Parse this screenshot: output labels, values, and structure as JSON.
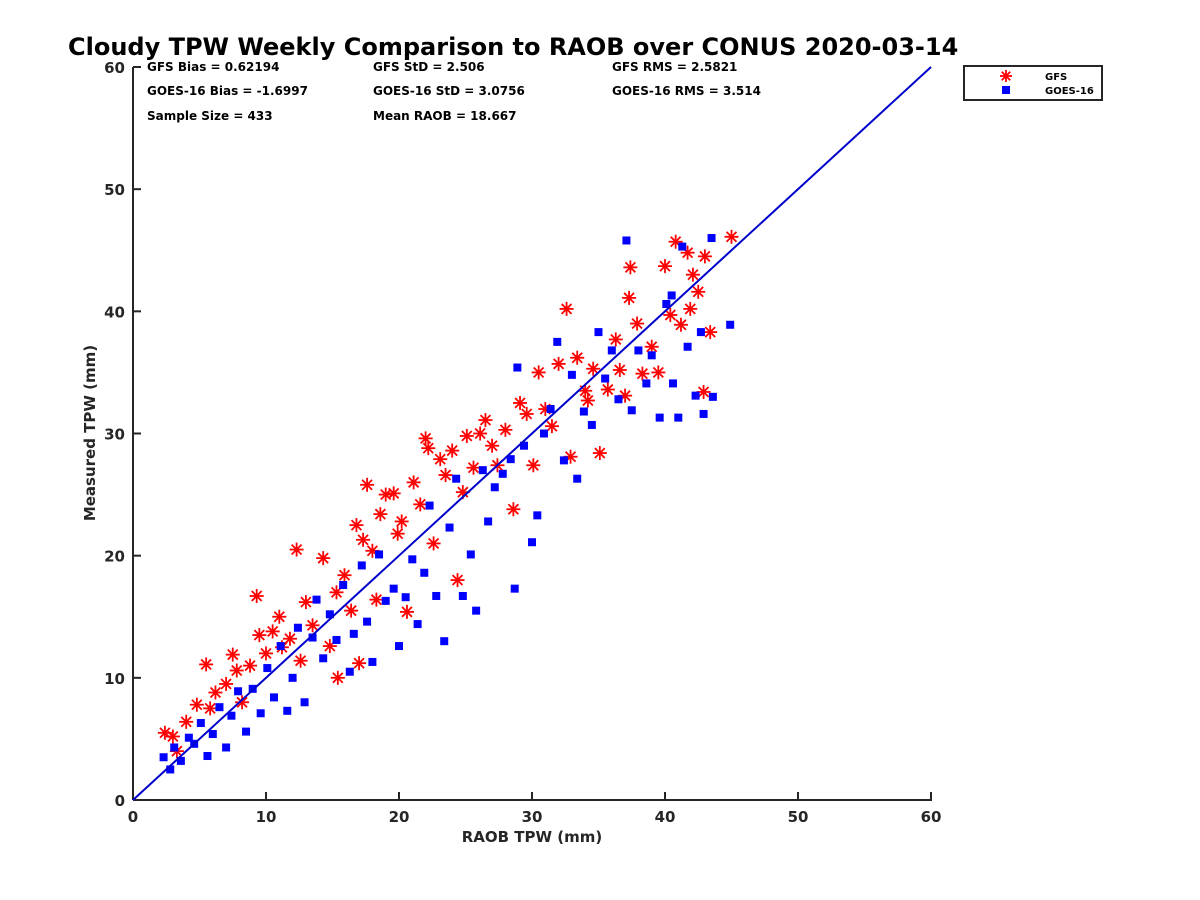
{
  "chart_data": {
    "type": "scatter",
    "title": "Cloudy TPW Weekly Comparison to RAOB over CONUS 2020-03-14",
    "xlabel": "RAOB TPW (mm)",
    "ylabel": "Measured TPW (mm)",
    "xlim": [
      0,
      60
    ],
    "ylim": [
      0,
      60
    ],
    "xticks": [
      0,
      10,
      20,
      30,
      40,
      50,
      60
    ],
    "yticks": [
      0,
      10,
      20,
      30,
      40,
      50,
      60
    ],
    "grid": false,
    "legend_position": "top-right",
    "reference_line": {
      "name": "1:1 line",
      "from": [
        0,
        0
      ],
      "to": [
        60,
        60
      ],
      "color": "#0000cc"
    },
    "stats": [
      [
        "GFS Bias = 0.62194",
        "GFS StD = 2.506",
        "GFS RMS = 2.5821"
      ],
      [
        "GOES-16 Bias = -1.6997",
        "GOES-16 StD = 3.0756",
        "GOES-16 RMS = 3.514"
      ],
      [
        "Sample Size = 433",
        "Mean RAOB = 18.667"
      ]
    ],
    "series": [
      {
        "name": "GFS",
        "marker": "asterisk",
        "color": "#ff0000",
        "points": [
          [
            2.4,
            5.5
          ],
          [
            3.0,
            5.2
          ],
          [
            3.3,
            4.0
          ],
          [
            4.0,
            6.4
          ],
          [
            4.8,
            7.8
          ],
          [
            5.5,
            11.1
          ],
          [
            5.8,
            7.5
          ],
          [
            6.2,
            8.8
          ],
          [
            7.0,
            9.5
          ],
          [
            7.5,
            11.9
          ],
          [
            7.8,
            10.6
          ],
          [
            8.2,
            8.0
          ],
          [
            8.8,
            11.0
          ],
          [
            9.3,
            16.7
          ],
          [
            9.5,
            13.5
          ],
          [
            10.0,
            12.0
          ],
          [
            10.5,
            13.8
          ],
          [
            11.0,
            15.0
          ],
          [
            11.2,
            12.5
          ],
          [
            11.8,
            13.2
          ],
          [
            12.3,
            20.5
          ],
          [
            12.6,
            11.4
          ],
          [
            13.0,
            16.2
          ],
          [
            13.5,
            14.3
          ],
          [
            14.3,
            19.8
          ],
          [
            14.8,
            12.6
          ],
          [
            15.3,
            17.0
          ],
          [
            15.4,
            10.0
          ],
          [
            15.9,
            18.4
          ],
          [
            16.4,
            15.5
          ],
          [
            16.8,
            22.5
          ],
          [
            17.0,
            11.2
          ],
          [
            17.3,
            21.3
          ],
          [
            17.6,
            25.8
          ],
          [
            18.0,
            20.4
          ],
          [
            18.3,
            16.4
          ],
          [
            18.6,
            23.4
          ],
          [
            19.0,
            25.0
          ],
          [
            19.6,
            25.1
          ],
          [
            19.9,
            21.8
          ],
          [
            20.2,
            22.8
          ],
          [
            20.6,
            15.4
          ],
          [
            21.1,
            26.0
          ],
          [
            21.6,
            24.2
          ],
          [
            22.0,
            29.6
          ],
          [
            22.2,
            28.8
          ],
          [
            22.6,
            21.0
          ],
          [
            23.1,
            27.9
          ],
          [
            23.5,
            26.6
          ],
          [
            24.0,
            28.6
          ],
          [
            24.4,
            18.0
          ],
          [
            24.8,
            25.2
          ],
          [
            25.1,
            29.8
          ],
          [
            25.6,
            27.2
          ],
          [
            26.1,
            30.0
          ],
          [
            26.5,
            31.1
          ],
          [
            27.0,
            29.0
          ],
          [
            27.4,
            27.4
          ],
          [
            28.0,
            30.3
          ],
          [
            28.6,
            23.8
          ],
          [
            29.1,
            32.5
          ],
          [
            29.6,
            31.6
          ],
          [
            30.1,
            27.4
          ],
          [
            30.5,
            35.0
          ],
          [
            31.0,
            32.0
          ],
          [
            31.5,
            30.6
          ],
          [
            32.0,
            35.7
          ],
          [
            32.6,
            40.2
          ],
          [
            32.9,
            28.1
          ],
          [
            33.4,
            36.2
          ],
          [
            34.0,
            33.5
          ],
          [
            34.6,
            35.3
          ],
          [
            35.1,
            28.4
          ],
          [
            35.7,
            33.6
          ],
          [
            36.3,
            37.7
          ],
          [
            37.0,
            33.1
          ],
          [
            37.3,
            41.1
          ],
          [
            37.4,
            43.6
          ],
          [
            37.9,
            39.0
          ],
          [
            38.3,
            34.9
          ],
          [
            39.0,
            37.1
          ],
          [
            39.5,
            35.0
          ],
          [
            40.0,
            43.7
          ],
          [
            40.4,
            39.7
          ],
          [
            40.8,
            45.7
          ],
          [
            41.2,
            38.9
          ],
          [
            41.7,
            44.8
          ],
          [
            42.1,
            43.0
          ],
          [
            42.5,
            41.6
          ],
          [
            43.0,
            44.5
          ],
          [
            42.9,
            33.4
          ],
          [
            43.4,
            38.3
          ],
          [
            45.0,
            46.1
          ],
          [
            41.9,
            40.2
          ],
          [
            36.6,
            35.2
          ],
          [
            34.2,
            32.7
          ]
        ]
      },
      {
        "name": "GOES-16",
        "marker": "square",
        "color": "#0000ff",
        "points": [
          [
            2.3,
            3.5
          ],
          [
            2.8,
            2.5
          ],
          [
            3.1,
            4.3
          ],
          [
            3.6,
            3.2
          ],
          [
            4.2,
            5.1
          ],
          [
            4.6,
            4.6
          ],
          [
            5.1,
            6.3
          ],
          [
            5.6,
            3.6
          ],
          [
            6.0,
            5.4
          ],
          [
            6.5,
            7.6
          ],
          [
            7.0,
            4.3
          ],
          [
            7.4,
            6.9
          ],
          [
            7.9,
            8.9
          ],
          [
            8.5,
            5.6
          ],
          [
            9.0,
            9.1
          ],
          [
            9.6,
            7.1
          ],
          [
            10.1,
            10.8
          ],
          [
            10.6,
            8.4
          ],
          [
            11.1,
            12.6
          ],
          [
            11.6,
            7.3
          ],
          [
            12.0,
            10.0
          ],
          [
            12.4,
            14.1
          ],
          [
            12.9,
            8.0
          ],
          [
            13.5,
            13.3
          ],
          [
            13.8,
            16.4
          ],
          [
            14.3,
            11.6
          ],
          [
            14.8,
            15.2
          ],
          [
            15.3,
            13.1
          ],
          [
            15.8,
            17.6
          ],
          [
            16.3,
            10.5
          ],
          [
            16.6,
            13.6
          ],
          [
            17.2,
            19.2
          ],
          [
            17.6,
            14.6
          ],
          [
            18.0,
            11.3
          ],
          [
            18.5,
            20.1
          ],
          [
            19.0,
            16.3
          ],
          [
            19.6,
            17.3
          ],
          [
            20.0,
            12.6
          ],
          [
            20.5,
            16.6
          ],
          [
            21.0,
            19.7
          ],
          [
            21.4,
            14.4
          ],
          [
            21.9,
            18.6
          ],
          [
            22.3,
            24.1
          ],
          [
            22.8,
            16.7
          ],
          [
            23.4,
            13.0
          ],
          [
            23.8,
            22.3
          ],
          [
            24.3,
            26.3
          ],
          [
            24.8,
            16.7
          ],
          [
            25.4,
            20.1
          ],
          [
            25.8,
            15.5
          ],
          [
            26.3,
            27.0
          ],
          [
            26.7,
            22.8
          ],
          [
            27.2,
            25.6
          ],
          [
            27.8,
            26.7
          ],
          [
            28.4,
            27.9
          ],
          [
            28.7,
            17.3
          ],
          [
            28.9,
            35.4
          ],
          [
            29.4,
            29.0
          ],
          [
            30.0,
            21.1
          ],
          [
            30.4,
            23.3
          ],
          [
            30.9,
            30.0
          ],
          [
            31.4,
            32.0
          ],
          [
            31.9,
            37.5
          ],
          [
            32.4,
            27.8
          ],
          [
            33.0,
            34.8
          ],
          [
            33.4,
            26.3
          ],
          [
            33.9,
            31.8
          ],
          [
            34.5,
            30.7
          ],
          [
            35.0,
            38.3
          ],
          [
            35.5,
            34.5
          ],
          [
            36.0,
            36.8
          ],
          [
            36.5,
            32.8
          ],
          [
            37.1,
            45.8
          ],
          [
            37.5,
            31.9
          ],
          [
            38.0,
            36.8
          ],
          [
            38.6,
            34.1
          ],
          [
            39.0,
            36.4
          ],
          [
            39.6,
            31.3
          ],
          [
            40.1,
            40.6
          ],
          [
            40.6,
            34.1
          ],
          [
            41.0,
            31.3
          ],
          [
            41.3,
            45.3
          ],
          [
            41.7,
            37.1
          ],
          [
            42.3,
            33.1
          ],
          [
            42.7,
            38.3
          ],
          [
            42.9,
            31.6
          ],
          [
            43.6,
            33.0
          ],
          [
            43.5,
            46.0
          ],
          [
            44.9,
            38.9
          ],
          [
            40.5,
            41.3
          ]
        ]
      }
    ]
  }
}
